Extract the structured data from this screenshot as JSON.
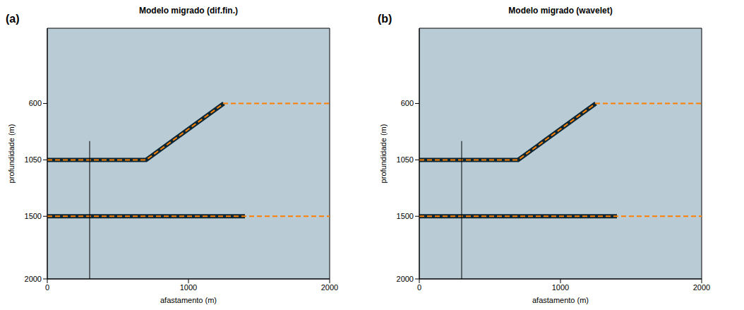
{
  "chart_data": [
    {
      "type": "line",
      "panel_label": "(a)",
      "title": "Modelo migrado (dif.fin.)",
      "x_label": "afastamento (m)",
      "y_label": "profundidade (m)",
      "xlim": [
        0,
        2000
      ],
      "xticks": [
        0,
        1000,
        2000
      ],
      "ylim": [
        0,
        2000
      ],
      "yticks": [
        600,
        1050,
        1500,
        2000
      ],
      "series": [
        {
          "color": "#0d2633",
          "line_style": "solid",
          "x": [
            0,
            700,
            1250
          ],
          "values": [
            1050,
            1050,
            600
          ]
        },
        {
          "color": "#0d2633",
          "line_style": "solid",
          "x": [
            0,
            1400
          ],
          "values": [
            1500,
            1500
          ]
        },
        {
          "color": "#ff8000",
          "line_style": "dashed",
          "x": [
            0,
            700,
            1250,
            2000
          ],
          "values": [
            1050,
            1050,
            600,
            600
          ]
        },
        {
          "color": "#ff8000",
          "line_style": "dashed",
          "x": [
            0,
            2000
          ],
          "values": [
            1500,
            1500
          ]
        },
        {
          "color": "#000000",
          "line_style": "solid",
          "x": [
            300,
            300
          ],
          "values": [
            900,
            2000
          ]
        }
      ]
    },
    {
      "type": "line",
      "panel_label": "(b)",
      "title": "Modelo migrado (wavelet)",
      "x_label": "afastamento (m)",
      "y_label": "profundidade (m)",
      "xlim": [
        0,
        2000
      ],
      "xticks": [
        0,
        1000,
        2000
      ],
      "ylim": [
        0,
        2000
      ],
      "yticks": [
        600,
        1050,
        1500,
        2000
      ],
      "series": [
        {
          "color": "#0d2633",
          "line_style": "solid",
          "x": [
            0,
            700,
            1250
          ],
          "values": [
            1050,
            1050,
            600
          ]
        },
        {
          "color": "#0d2633",
          "line_style": "solid",
          "x": [
            0,
            1400
          ],
          "values": [
            1500,
            1500
          ]
        },
        {
          "color": "#ff8000",
          "line_style": "dashed",
          "x": [
            0,
            700,
            1250,
            2000
          ],
          "values": [
            1050,
            1050,
            600,
            600
          ]
        },
        {
          "color": "#ff8000",
          "line_style": "dashed",
          "x": [
            0,
            2000
          ],
          "values": [
            1500,
            1500
          ]
        },
        {
          "color": "#000000",
          "line_style": "solid",
          "x": [
            300,
            300
          ],
          "values": [
            900,
            2000
          ]
        }
      ]
    }
  ]
}
